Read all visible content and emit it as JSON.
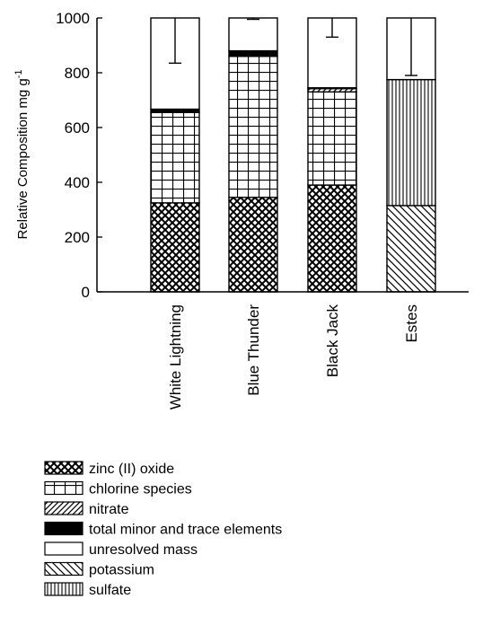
{
  "chart_data": {
    "type": "bar",
    "stacked": true,
    "ylabel_main": "Relative Composition mg g",
    "ylabel_superscript": "-1",
    "ylim": [
      0,
      1000
    ],
    "yticks": [
      "0",
      "200",
      "400",
      "600",
      "800",
      "1000"
    ],
    "yticks_values": [
      0,
      200,
      400,
      600,
      800,
      1000
    ],
    "categories": [
      "White Lightning",
      "Blue Thunder",
      "Black Jack",
      "Estes"
    ],
    "legend_placement": "bottom-left",
    "grid": false,
    "series": [
      {
        "name": "zinc (II) oxide",
        "pattern": "crosshatch",
        "values": [
          325,
          345,
          390,
          0
        ]
      },
      {
        "name": "chlorine species",
        "pattern": "grid",
        "values": [
          330,
          515,
          340,
          0
        ]
      },
      {
        "name": "nitrate",
        "pattern": "diagonal-right",
        "values": [
          0,
          0,
          12,
          0
        ]
      },
      {
        "name": "total minor and trace elements",
        "pattern": "solid-black",
        "values": [
          12,
          20,
          3,
          0
        ]
      },
      {
        "name": "unresolved mass",
        "pattern": "empty",
        "values": [
          333,
          120,
          255,
          225
        ]
      },
      {
        "name": "potassium",
        "pattern": "diagonal-left",
        "values": [
          0,
          0,
          0,
          315
        ]
      },
      {
        "name": "sulfate",
        "pattern": "vertical",
        "values": [
          0,
          0,
          0,
          460
        ]
      }
    ],
    "stack_order_by_bar": [
      [
        "zinc (II) oxide",
        "chlorine species",
        "total minor and trace elements",
        "unresolved mass"
      ],
      [
        "zinc (II) oxide",
        "chlorine species",
        "total minor and trace elements",
        "unresolved mass"
      ],
      [
        "zinc (II) oxide",
        "chlorine species",
        "nitrate",
        "total minor and trace elements",
        "unresolved mass"
      ],
      [
        "potassium",
        "sulfate",
        "unresolved mass"
      ]
    ],
    "error_bars": [
      835,
      995,
      930,
      790
    ]
  }
}
